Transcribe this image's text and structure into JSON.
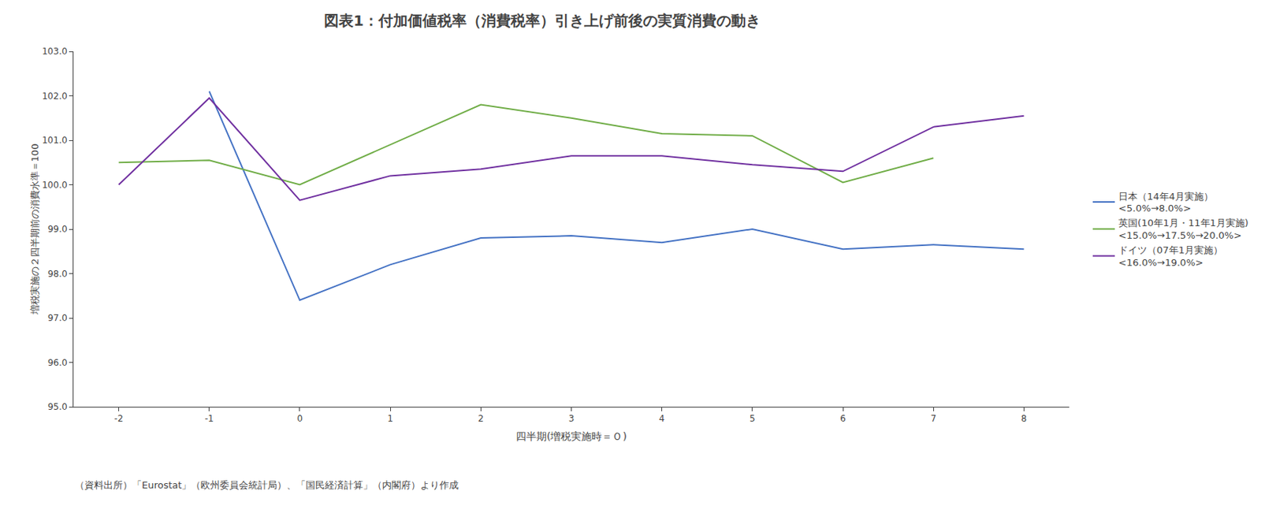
{
  "chart_data": {
    "type": "line",
    "title": "図表1：付加価値税率（消費税率）引き上げ前後の実質消費の動き",
    "annotations": [
      "（資料出所）「Eurostat」（欧州委員会統計局）、「国民経済計算」（内閣府）より作成"
    ],
    "x_label": "四半期(増税実施時＝Ｏ)",
    "y_label": "増税実施の２四半期前の消費水準＝100",
    "x": [
      -2,
      -1,
      0,
      1,
      2,
      3,
      4,
      5,
      6,
      7,
      8
    ],
    "series": [
      {
        "name": "日本（14年4月実施）\n<5.0%→8.0%>",
        "color": "#4472C4",
        "values": [
          null,
          102.1,
          97.4,
          98.2,
          98.8,
          98.85,
          98.7,
          99.0,
          98.55,
          98.65,
          98.55
        ]
      },
      {
        "name": "英国(10年1月・11年1月実施)\n<15.0%→17.5%→20.0%>",
        "color": "#70AD47",
        "values": [
          100.5,
          100.55,
          100.0,
          null,
          101.8,
          101.5,
          101.15,
          101.1,
          100.05,
          100.6,
          null
        ]
      },
      {
        "name": "ドイツ（07年1月実施）\n<16.0%→19.0%>",
        "color": "#7030A0",
        "values": [
          100.0,
          101.95,
          99.65,
          100.2,
          100.35,
          100.65,
          100.65,
          100.45,
          100.3,
          101.3,
          101.55
        ]
      }
    ],
    "xlim": [
      -2.5,
      8.5
    ],
    "xticks": [
      -2,
      -1,
      0,
      1,
      2,
      3,
      4,
      5,
      6,
      7,
      8
    ],
    "ylim": [
      95.0,
      103.0
    ],
    "yticks": [
      {
        "value": 95,
        "label": "95.0"
      },
      {
        "value": 96,
        "label": "96.0"
      },
      {
        "value": 97,
        "label": "97.0"
      },
      {
        "value": 98,
        "label": "98.0"
      },
      {
        "value": 99,
        "label": "99.0"
      },
      {
        "value": 100,
        "label": "100.0"
      },
      {
        "value": 101,
        "label": "101.0"
      },
      {
        "value": 102,
        "label": "102.0"
      },
      {
        "value": 103,
        "label": "103.0"
      }
    ],
    "grid": false,
    "legend": "right"
  }
}
